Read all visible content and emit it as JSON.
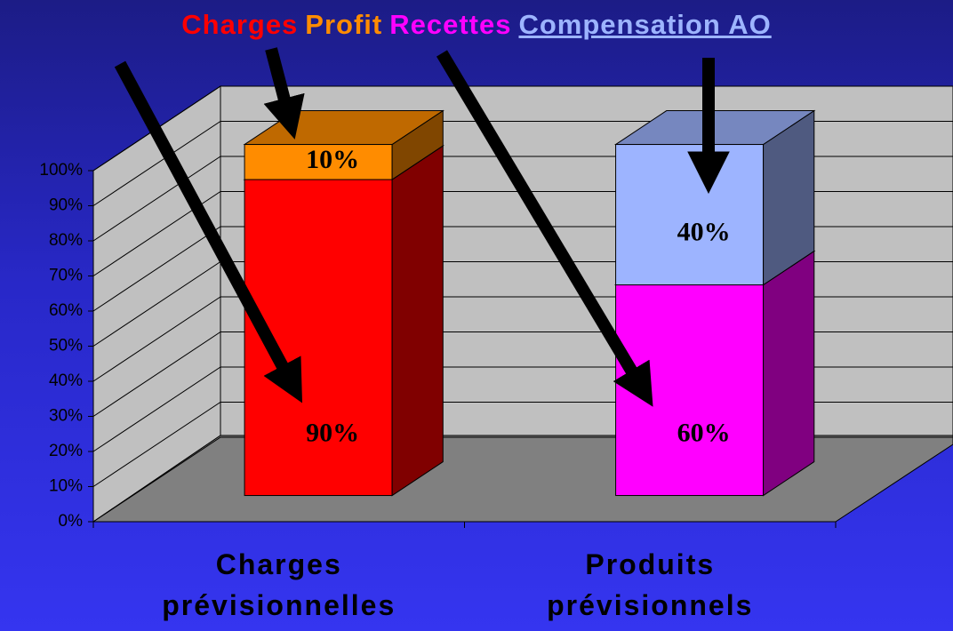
{
  "chart_data": {
    "type": "bar",
    "stacked": true,
    "categories": [
      "Charges prévisionnelles",
      "Produits prévisionnels"
    ],
    "series": [
      {
        "name": "Charges",
        "color": "#ff0000",
        "values": [
          90,
          null
        ],
        "value_labels": [
          "90%",
          null
        ]
      },
      {
        "name": "Profit",
        "color": "#ff8c00",
        "values": [
          10,
          null
        ],
        "value_labels": [
          "10%",
          null
        ]
      },
      {
        "name": "Recettes",
        "color": "#ff00ff",
        "values": [
          null,
          60
        ],
        "value_labels": [
          null,
          "60%"
        ]
      },
      {
        "name": "Compensation AO",
        "color": "#9db4ff",
        "values": [
          null,
          40
        ],
        "value_labels": [
          null,
          "40%"
        ]
      }
    ],
    "ylim": [
      0,
      100
    ],
    "yticks": [
      {
        "value": 0,
        "label": "0%"
      },
      {
        "value": 10,
        "label": "10%"
      },
      {
        "value": 20,
        "label": "20%"
      },
      {
        "value": 30,
        "label": "30%"
      },
      {
        "value": 40,
        "label": "40%"
      },
      {
        "value": 50,
        "label": "50%"
      },
      {
        "value": 60,
        "label": "60%"
      },
      {
        "value": 70,
        "label": "70%"
      },
      {
        "value": 80,
        "label": "80%"
      },
      {
        "value": 90,
        "label": "90%"
      },
      {
        "value": 100,
        "label": "100%"
      }
    ],
    "grid": true
  }
}
